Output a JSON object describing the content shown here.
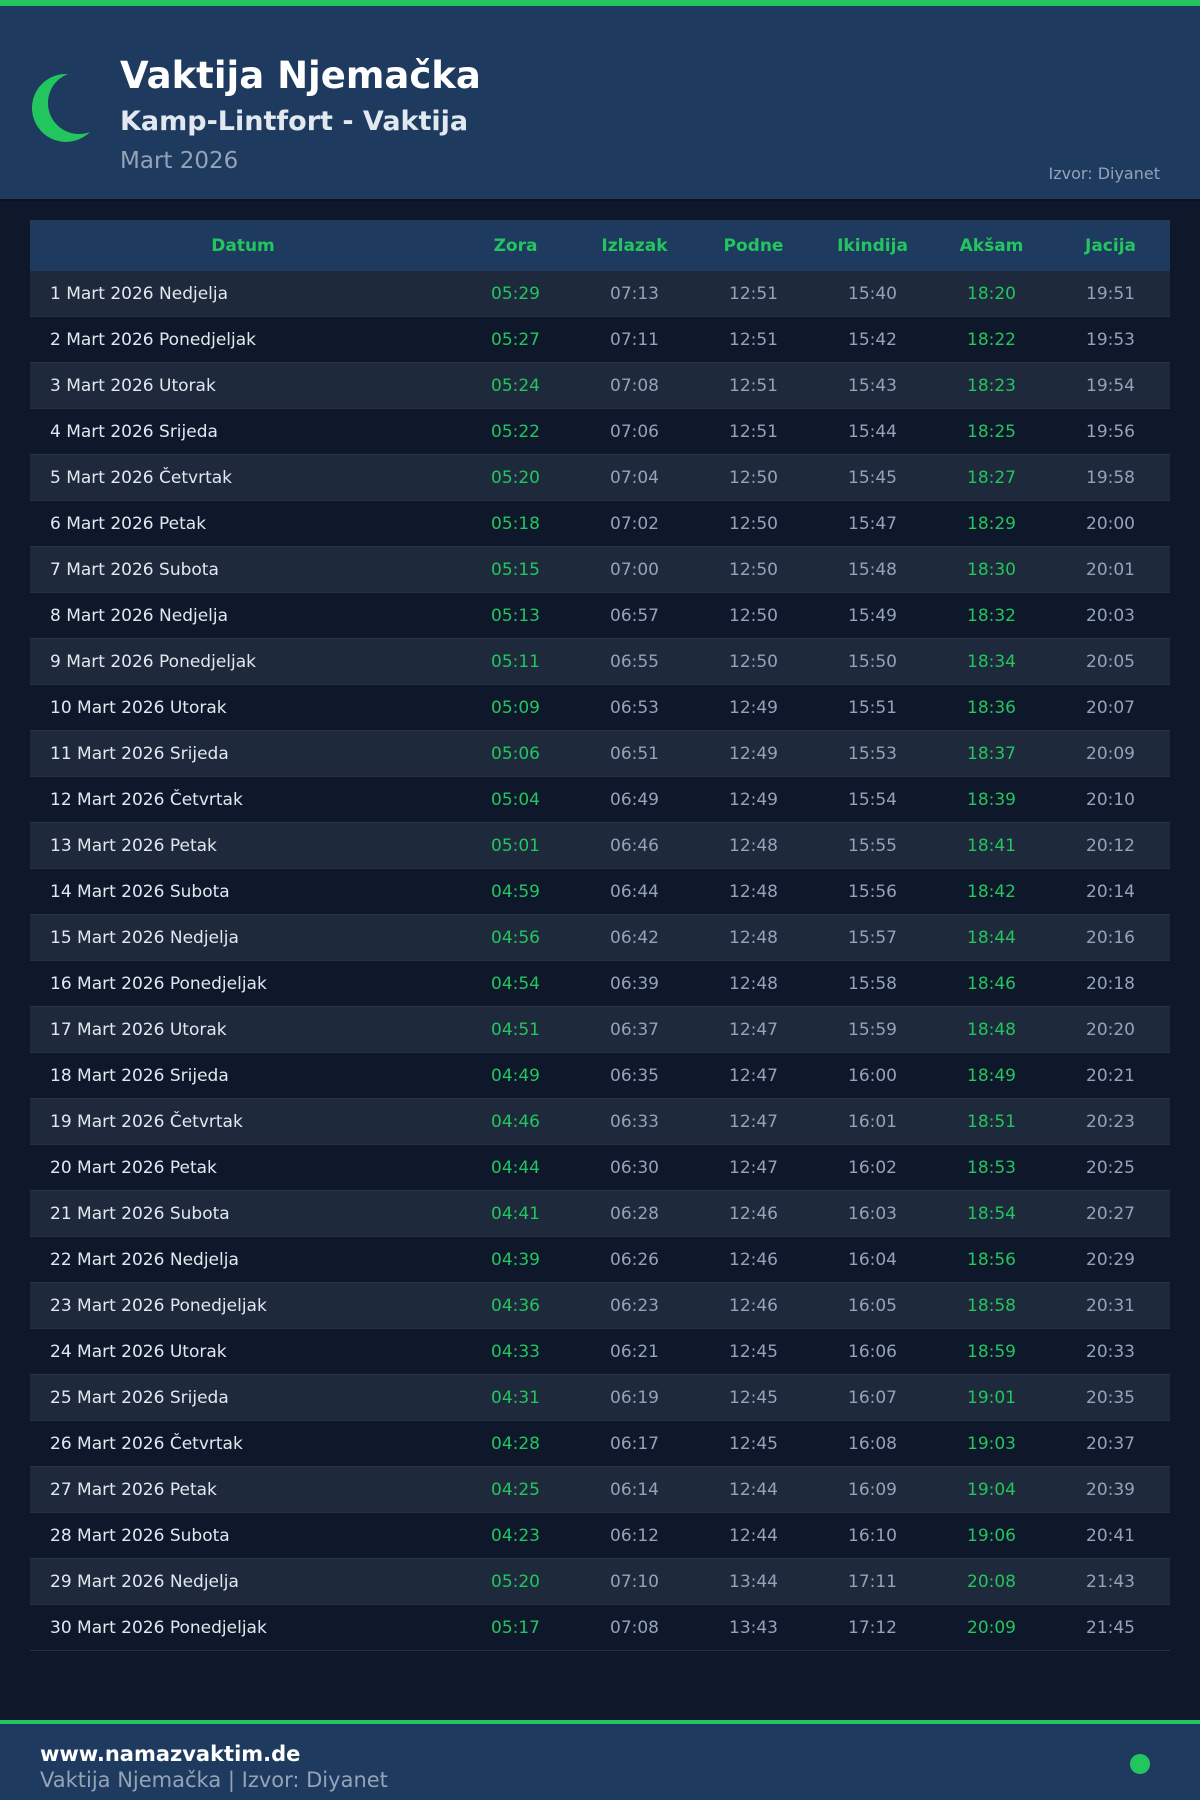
{
  "header": {
    "title": "Vaktija Njemačka",
    "subtitle": "Kamp-Lintfort - Vaktija",
    "month": "Mart 2026",
    "source": "Izvor: Diyanet",
    "icon": "crescent-moon-icon",
    "accent": "#22c55e"
  },
  "table": {
    "columns": [
      "Datum",
      "Zora",
      "Izlazak",
      "Podne",
      "Ikindija",
      "Akšam",
      "Jacija"
    ],
    "rows": [
      [
        "1 Mart 2026 Nedjelja",
        "05:29",
        "07:13",
        "12:51",
        "15:40",
        "18:20",
        "19:51"
      ],
      [
        "2 Mart 2026 Ponedjeljak",
        "05:27",
        "07:11",
        "12:51",
        "15:42",
        "18:22",
        "19:53"
      ],
      [
        "3 Mart 2026 Utorak",
        "05:24",
        "07:08",
        "12:51",
        "15:43",
        "18:23",
        "19:54"
      ],
      [
        "4 Mart 2026 Srijeda",
        "05:22",
        "07:06",
        "12:51",
        "15:44",
        "18:25",
        "19:56"
      ],
      [
        "5 Mart 2026 Četvrtak",
        "05:20",
        "07:04",
        "12:50",
        "15:45",
        "18:27",
        "19:58"
      ],
      [
        "6 Mart 2026 Petak",
        "05:18",
        "07:02",
        "12:50",
        "15:47",
        "18:29",
        "20:00"
      ],
      [
        "7 Mart 2026 Subota",
        "05:15",
        "07:00",
        "12:50",
        "15:48",
        "18:30",
        "20:01"
      ],
      [
        "8 Mart 2026 Nedjelja",
        "05:13",
        "06:57",
        "12:50",
        "15:49",
        "18:32",
        "20:03"
      ],
      [
        "9 Mart 2026 Ponedjeljak",
        "05:11",
        "06:55",
        "12:50",
        "15:50",
        "18:34",
        "20:05"
      ],
      [
        "10 Mart 2026 Utorak",
        "05:09",
        "06:53",
        "12:49",
        "15:51",
        "18:36",
        "20:07"
      ],
      [
        "11 Mart 2026 Srijeda",
        "05:06",
        "06:51",
        "12:49",
        "15:53",
        "18:37",
        "20:09"
      ],
      [
        "12 Mart 2026 Četvrtak",
        "05:04",
        "06:49",
        "12:49",
        "15:54",
        "18:39",
        "20:10"
      ],
      [
        "13 Mart 2026 Petak",
        "05:01",
        "06:46",
        "12:48",
        "15:55",
        "18:41",
        "20:12"
      ],
      [
        "14 Mart 2026 Subota",
        "04:59",
        "06:44",
        "12:48",
        "15:56",
        "18:42",
        "20:14"
      ],
      [
        "15 Mart 2026 Nedjelja",
        "04:56",
        "06:42",
        "12:48",
        "15:57",
        "18:44",
        "20:16"
      ],
      [
        "16 Mart 2026 Ponedjeljak",
        "04:54",
        "06:39",
        "12:48",
        "15:58",
        "18:46",
        "20:18"
      ],
      [
        "17 Mart 2026 Utorak",
        "04:51",
        "06:37",
        "12:47",
        "15:59",
        "18:48",
        "20:20"
      ],
      [
        "18 Mart 2026 Srijeda",
        "04:49",
        "06:35",
        "12:47",
        "16:00",
        "18:49",
        "20:21"
      ],
      [
        "19 Mart 2026 Četvrtak",
        "04:46",
        "06:33",
        "12:47",
        "16:01",
        "18:51",
        "20:23"
      ],
      [
        "20 Mart 2026 Petak",
        "04:44",
        "06:30",
        "12:47",
        "16:02",
        "18:53",
        "20:25"
      ],
      [
        "21 Mart 2026 Subota",
        "04:41",
        "06:28",
        "12:46",
        "16:03",
        "18:54",
        "20:27"
      ],
      [
        "22 Mart 2026 Nedjelja",
        "04:39",
        "06:26",
        "12:46",
        "16:04",
        "18:56",
        "20:29"
      ],
      [
        "23 Mart 2026 Ponedjeljak",
        "04:36",
        "06:23",
        "12:46",
        "16:05",
        "18:58",
        "20:31"
      ],
      [
        "24 Mart 2026 Utorak",
        "04:33",
        "06:21",
        "12:45",
        "16:06",
        "18:59",
        "20:33"
      ],
      [
        "25 Mart 2026 Srijeda",
        "04:31",
        "06:19",
        "12:45",
        "16:07",
        "19:01",
        "20:35"
      ],
      [
        "26 Mart 2026 Četvrtak",
        "04:28",
        "06:17",
        "12:45",
        "16:08",
        "19:03",
        "20:37"
      ],
      [
        "27 Mart 2026 Petak",
        "04:25",
        "06:14",
        "12:44",
        "16:09",
        "19:04",
        "20:39"
      ],
      [
        "28 Mart 2026 Subota",
        "04:23",
        "06:12",
        "12:44",
        "16:10",
        "19:06",
        "20:41"
      ],
      [
        "29 Mart 2026 Nedjelja",
        "05:20",
        "07:10",
        "13:44",
        "17:11",
        "20:08",
        "21:43"
      ],
      [
        "30 Mart 2026 Ponedjeljak",
        "05:17",
        "07:08",
        "13:43",
        "17:12",
        "20:09",
        "21:45"
      ]
    ]
  },
  "footer": {
    "site": "www.namazvaktim.de",
    "text": "Vaktija Njemačka | Izvor: Diyanet"
  }
}
